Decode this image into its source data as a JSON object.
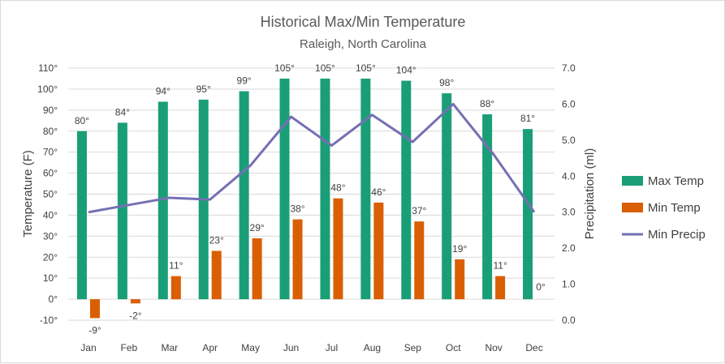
{
  "chart_data": {
    "type": "bar",
    "title": "Historical Max/Min Temperature",
    "subtitle": "Raleigh, North Carolina",
    "categories": [
      "Jan",
      "Feb",
      "Mar",
      "Apr",
      "May",
      "Jun",
      "Jul",
      "Aug",
      "Sep",
      "Oct",
      "Nov",
      "Dec"
    ],
    "series": [
      {
        "name": "Max Temp",
        "type": "bar",
        "axis": "left",
        "color": "#1a9e77",
        "values": [
          80,
          84,
          94,
          95,
          99,
          105,
          105,
          105,
          104,
          98,
          88,
          81
        ],
        "labels": [
          "80°",
          "84°",
          "94°",
          "95°",
          "99°",
          "105°",
          "105°",
          "105°",
          "104°",
          "98°",
          "88°",
          "81°"
        ]
      },
      {
        "name": "Min Temp",
        "type": "bar",
        "axis": "left",
        "color": "#d95f02",
        "values": [
          -9,
          -2,
          11,
          23,
          29,
          38,
          48,
          46,
          37,
          19,
          11,
          0
        ],
        "labels": [
          "-9°",
          "-2°",
          "11°",
          "23°",
          "29°",
          "38°",
          "48°",
          "46°",
          "37°",
          "19°",
          "11°",
          "0°"
        ]
      },
      {
        "name": "Min Precip",
        "type": "line",
        "axis": "right",
        "color": "#7570b3",
        "values": [
          3.0,
          3.2,
          3.4,
          3.35,
          4.3,
          5.65,
          4.85,
          5.7,
          4.95,
          6.0,
          4.6,
          3.0
        ]
      }
    ],
    "ylabel": "Temperature (F)",
    "y2label": "Precipitation (ml)",
    "ylim": [
      -10,
      110
    ],
    "y2lim": [
      0,
      7
    ],
    "yticks": [
      "-10°",
      "0°",
      "10°",
      "20°",
      "30°",
      "40°",
      "50°",
      "60°",
      "70°",
      "80°",
      "90°",
      "100°",
      "110°"
    ],
    "y2ticks": [
      "0.0",
      "1.0",
      "2.0",
      "3.0",
      "4.0",
      "5.0",
      "6.0",
      "7.0"
    ],
    "grid": true,
    "legend_position": "right"
  }
}
